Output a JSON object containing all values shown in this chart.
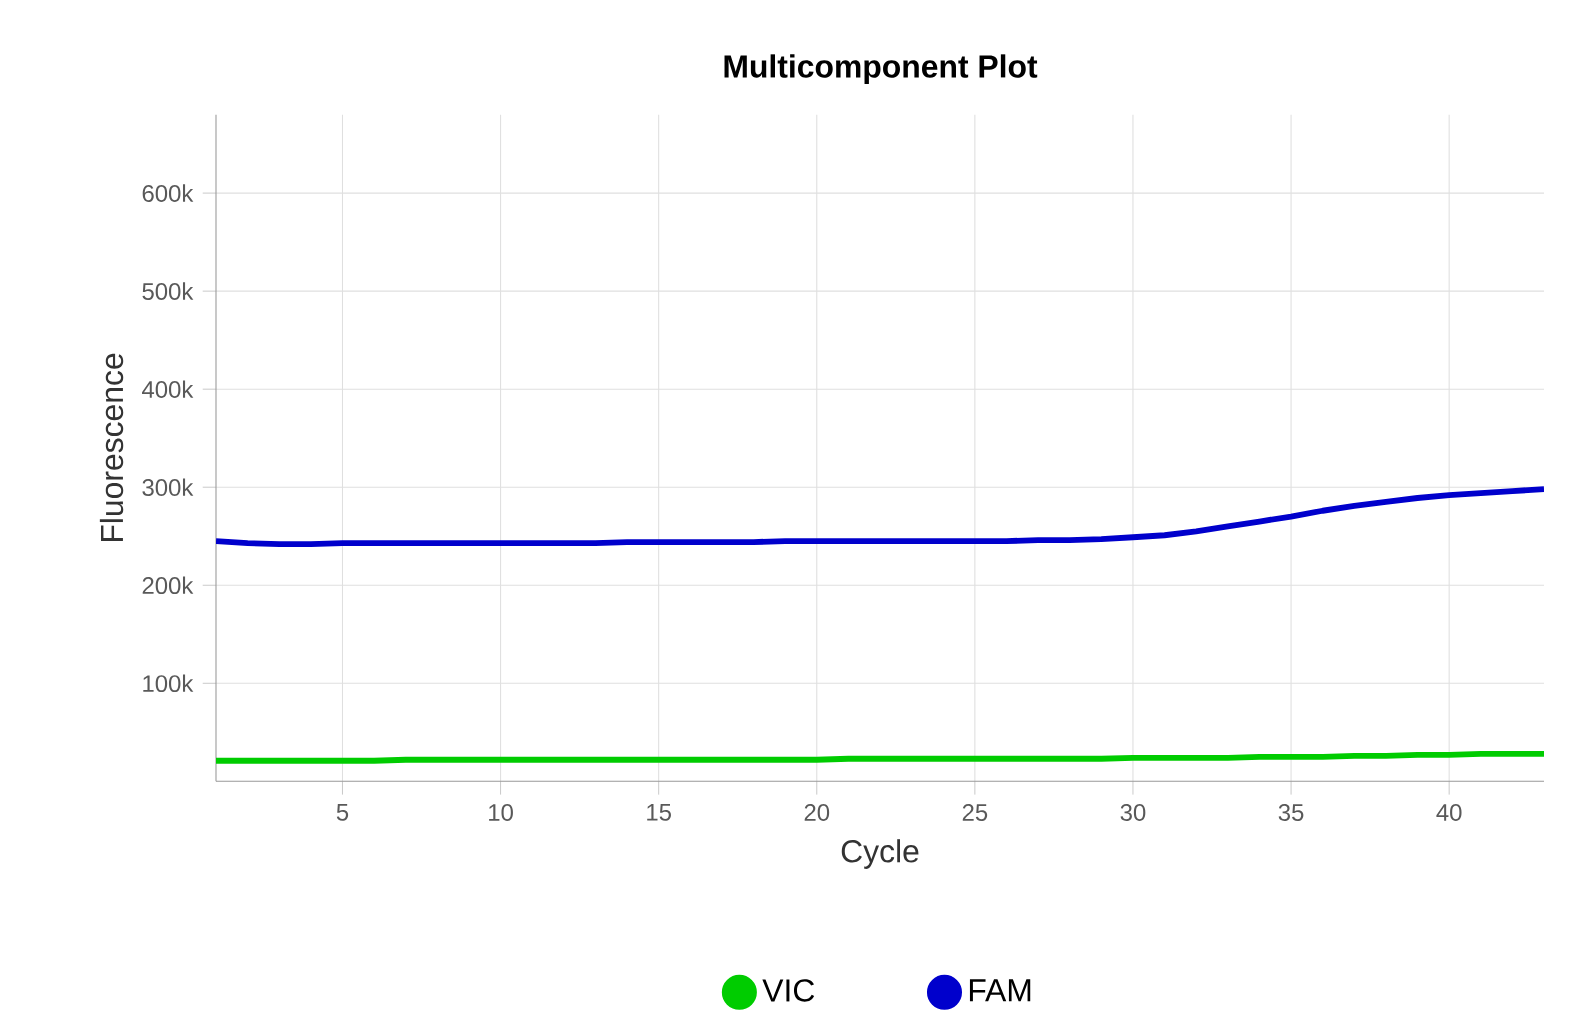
{
  "chart_data": {
    "type": "line",
    "title": "Multicomponent Plot",
    "xlabel": "Cycle",
    "ylabel": "Fluorescence",
    "x": [
      1,
      2,
      3,
      4,
      5,
      6,
      7,
      8,
      9,
      10,
      11,
      12,
      13,
      14,
      15,
      16,
      17,
      18,
      19,
      20,
      21,
      22,
      23,
      24,
      25,
      26,
      27,
      28,
      29,
      30,
      31,
      32,
      33,
      34,
      35,
      36,
      37,
      38,
      39,
      40,
      41,
      42,
      43
    ],
    "series": [
      {
        "name": "VIC",
        "color": "#00cc00",
        "values": [
          21000,
          21000,
          21000,
          21000,
          21000,
          21000,
          22000,
          22000,
          22000,
          22000,
          22000,
          22000,
          22000,
          22000,
          22000,
          22000,
          22000,
          22000,
          22000,
          22000,
          23000,
          23000,
          23000,
          23000,
          23000,
          23000,
          23000,
          23000,
          23000,
          24000,
          24000,
          24000,
          24000,
          25000,
          25000,
          25000,
          26000,
          26000,
          27000,
          27000,
          28000,
          28000,
          28000
        ]
      },
      {
        "name": "FAM",
        "color": "#0000cc",
        "values": [
          245000,
          243000,
          242000,
          242000,
          243000,
          243000,
          243000,
          243000,
          243000,
          243000,
          243000,
          243000,
          243000,
          244000,
          244000,
          244000,
          244000,
          244000,
          245000,
          245000,
          245000,
          245000,
          245000,
          245000,
          245000,
          245000,
          246000,
          246000,
          247000,
          249000,
          251000,
          255000,
          260000,
          265000,
          270000,
          276000,
          281000,
          285000,
          289000,
          292000,
          294000,
          296000,
          298000
        ]
      }
    ],
    "xlim": [
      1,
      43
    ],
    "ylim": [
      0,
      680000
    ],
    "xticks": [
      5,
      10,
      15,
      20,
      25,
      30,
      35,
      40
    ],
    "yticks": [
      {
        "value": 100000,
        "label": "100k"
      },
      {
        "value": 200000,
        "label": "200k"
      },
      {
        "value": 300000,
        "label": "300k"
      },
      {
        "value": 400000,
        "label": "400k"
      },
      {
        "value": 500000,
        "label": "500k"
      },
      {
        "value": 600000,
        "label": "600k"
      }
    ],
    "grid": true,
    "legend": "bottom",
    "marker": "none",
    "line_style": "solid"
  }
}
